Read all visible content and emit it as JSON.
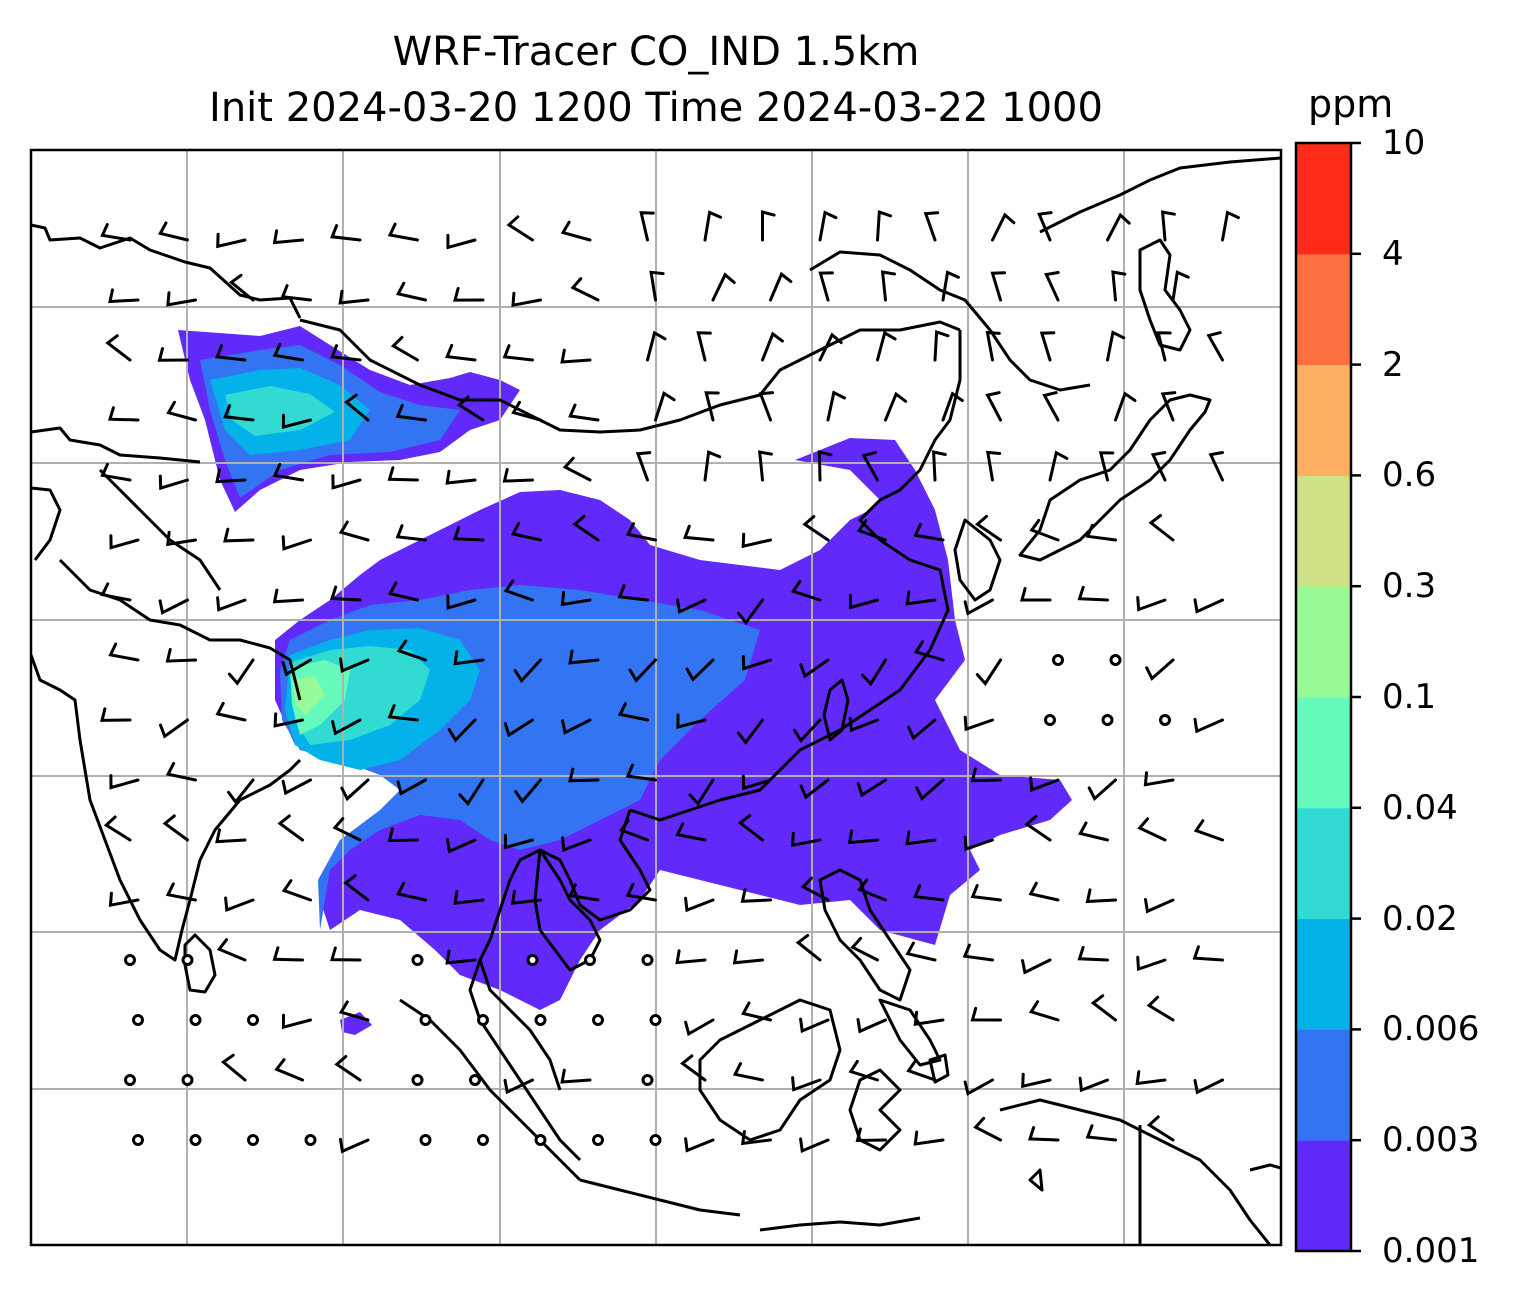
{
  "title": {
    "line1": "WRF-Tracer CO_IND 1.5km",
    "line2": "Init 2024-03-20 1200 Time 2024-03-22 1000"
  },
  "colorbar": {
    "unit": "ppm",
    "ticks": [
      "0.001",
      "0.003",
      "0.006",
      "0.02",
      "0.04",
      "0.1",
      "0.3",
      "0.6",
      "2",
      "4",
      "10"
    ],
    "colors": [
      "#6229fb",
      "#3274f2",
      "#04b2ea",
      "#31dbd2",
      "#66fbbd",
      "#98fa96",
      "#cfe187",
      "#fdae61",
      "#ff7040",
      "#ff2a18"
    ]
  },
  "map": {
    "background": "#ffffff",
    "gridline_color": "#b0b0b0",
    "coastline_color": "#000000",
    "gridlines": true
  }
}
